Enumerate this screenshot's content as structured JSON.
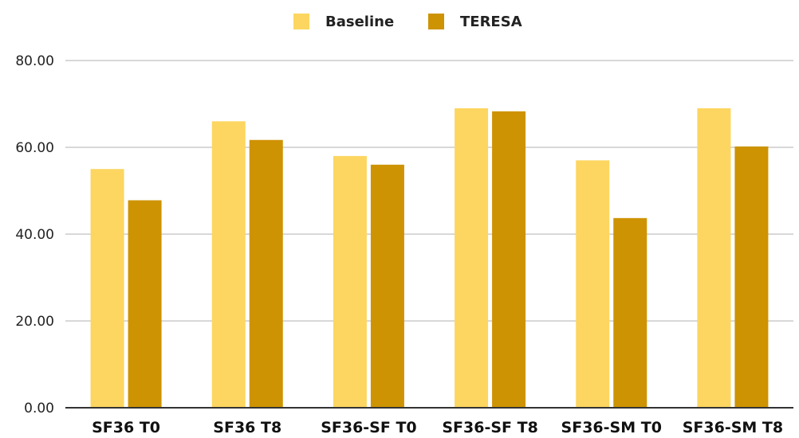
{
  "chart_data": {
    "type": "bar",
    "categories": [
      "SF36 T0",
      "SF36 T8",
      "SF36-SF T0",
      "SF36-SF T8",
      "SF36-SM T0",
      "SF36-SM T8"
    ],
    "series": [
      {
        "name": "Baseline",
        "color": "#FCD660",
        "values": [
          55.0,
          66.0,
          58.0,
          69.0,
          57.0,
          69.0
        ]
      },
      {
        "name": "TERESA",
        "color": "#CE9303",
        "values": [
          47.8,
          61.7,
          56.0,
          68.3,
          43.7,
          60.2
        ]
      }
    ],
    "ylim": [
      0,
      80
    ],
    "yticks": [
      0,
      20,
      40,
      60,
      80
    ],
    "ytick_labels": [
      "0.00",
      "20.00",
      "40.00",
      "60.00",
      "80.00"
    ],
    "grid": true,
    "legend_position": "top-center",
    "colors": {
      "grid": "#CCCCCC",
      "axis": "#333333"
    }
  }
}
